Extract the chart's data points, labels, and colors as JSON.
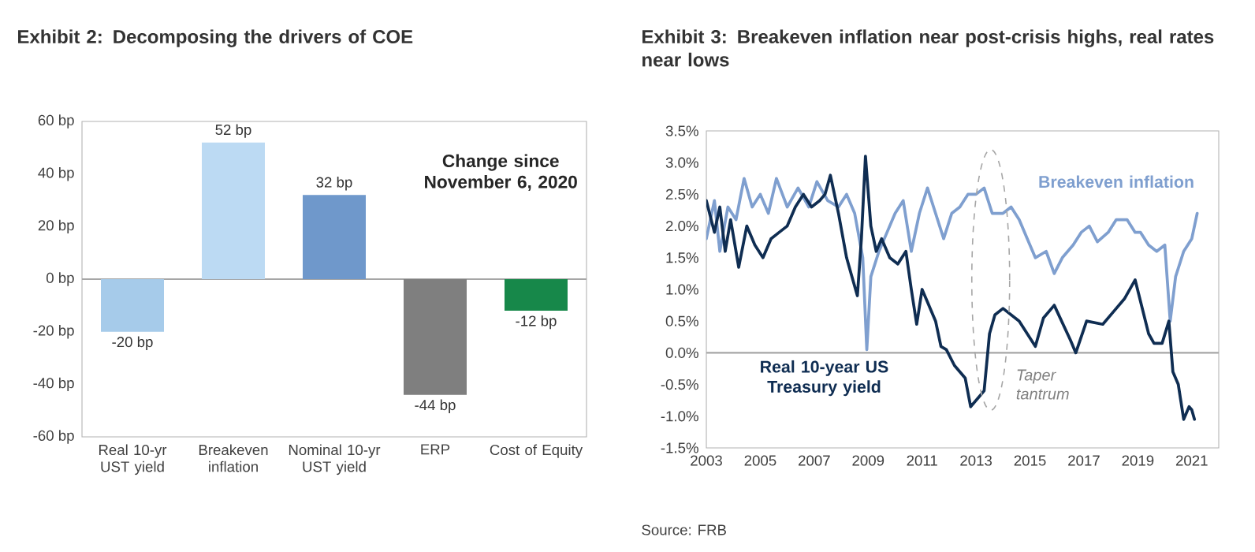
{
  "chart_data": [
    {
      "type": "bar",
      "title": "Exhibit 2: Decomposing the drivers of COE",
      "categories": [
        "Real 10-yr UST yield",
        "Breakeven inflation",
        "Nominal 10-yr UST yield",
        "ERP",
        "Cost of Equity"
      ],
      "values": [
        -20,
        52,
        32,
        -44,
        -12
      ],
      "colors": [
        "#a6cbea",
        "#bcdaf3",
        "#6f98cb",
        "#7f7f7f",
        "#17884a"
      ],
      "value_labels": [
        "-20 bp",
        "52 bp",
        "32 bp",
        "-44 bp",
        "-12 bp"
      ],
      "ylim": [
        -60,
        60
      ],
      "yticks": [
        {
          "value": -60,
          "label": "-60 bp"
        },
        {
          "value": -40,
          "label": "-40 bp"
        },
        {
          "value": -20,
          "label": "-20 bp"
        },
        {
          "value": 0,
          "label": "0 bp"
        },
        {
          "value": 20,
          "label": "20 bp"
        },
        {
          "value": 40,
          "label": "40 bp"
        },
        {
          "value": 60,
          "label": "60 bp"
        }
      ],
      "annotations": [
        "Change since November 6, 2020"
      ],
      "ref_lines": [
        {
          "axis": "y",
          "value": 0,
          "color": "#a6a6a6"
        }
      ]
    },
    {
      "type": "line",
      "title": "Exhibit 3: Breakeven inflation near post-crisis highs, real rates near lows",
      "series": [
        {
          "name": "Breakeven inflation",
          "color": "#7f9fcf",
          "x": [
            2003.0,
            2003.3,
            2003.5,
            2003.8,
            2004.1,
            2004.4,
            2004.7,
            2005.0,
            2005.3,
            2005.6,
            2006.0,
            2006.4,
            2006.8,
            2007.1,
            2007.5,
            2007.9,
            2008.2,
            2008.5,
            2008.8,
            2008.95,
            2009.1,
            2009.4,
            2009.7,
            2010.0,
            2010.3,
            2010.6,
            2010.9,
            2011.2,
            2011.5,
            2011.8,
            2012.1,
            2012.4,
            2012.7,
            2013.0,
            2013.3,
            2013.6,
            2014.0,
            2014.3,
            2014.6,
            2014.9,
            2015.2,
            2015.6,
            2015.9,
            2016.2,
            2016.6,
            2016.9,
            2017.2,
            2017.5,
            2017.9,
            2018.2,
            2018.6,
            2018.9,
            2019.1,
            2019.4,
            2019.7,
            2020.0,
            2020.2,
            2020.4,
            2020.7,
            2021.0,
            2021.2
          ],
          "values": [
            1.8,
            2.4,
            1.6,
            2.3,
            2.1,
            2.75,
            2.3,
            2.5,
            2.2,
            2.75,
            2.3,
            2.6,
            2.3,
            2.7,
            2.4,
            2.3,
            2.5,
            2.2,
            1.5,
            0.05,
            1.2,
            1.6,
            1.9,
            2.2,
            2.4,
            1.6,
            2.2,
            2.6,
            2.2,
            1.8,
            2.2,
            2.3,
            2.5,
            2.5,
            2.6,
            2.2,
            2.2,
            2.3,
            2.1,
            1.8,
            1.5,
            1.6,
            1.25,
            1.5,
            1.7,
            1.9,
            2.0,
            1.75,
            1.9,
            2.1,
            2.1,
            1.9,
            1.9,
            1.7,
            1.6,
            1.7,
            0.5,
            1.2,
            1.6,
            1.8,
            2.2
          ]
        },
        {
          "name": "Real 10-year US Treasury yield",
          "color": "#0f2d52",
          "x": [
            2003.0,
            2003.3,
            2003.5,
            2003.7,
            2003.9,
            2004.2,
            2004.5,
            2004.8,
            2005.1,
            2005.4,
            2005.7,
            2006.0,
            2006.3,
            2006.6,
            2006.9,
            2007.2,
            2007.4,
            2007.6,
            2007.9,
            2008.2,
            2008.4,
            2008.6,
            2008.75,
            2008.9,
            2009.1,
            2009.3,
            2009.5,
            2009.8,
            2010.1,
            2010.4,
            2010.6,
            2010.8,
            2011.0,
            2011.2,
            2011.5,
            2011.7,
            2011.9,
            2012.2,
            2012.6,
            2012.8,
            2013.1,
            2013.3,
            2013.5,
            2013.7,
            2014.0,
            2014.6,
            2015.2,
            2015.5,
            2015.9,
            2016.5,
            2016.7,
            2017.1,
            2017.7,
            2018.1,
            2018.5,
            2018.9,
            2019.4,
            2019.6,
            2019.9,
            2020.15,
            2020.3,
            2020.5,
            2020.7,
            2020.9,
            2021.0,
            2021.1
          ],
          "values": [
            2.4,
            1.9,
            2.3,
            1.6,
            2.1,
            1.35,
            2.0,
            1.7,
            1.5,
            1.8,
            1.9,
            2.0,
            2.3,
            2.5,
            2.3,
            2.4,
            2.5,
            2.8,
            2.2,
            1.5,
            1.2,
            0.9,
            1.8,
            3.1,
            2.0,
            1.6,
            1.8,
            1.5,
            1.4,
            1.6,
            1.0,
            0.45,
            1.0,
            0.8,
            0.5,
            0.1,
            0.05,
            -0.2,
            -0.4,
            -0.85,
            -0.7,
            -0.6,
            0.3,
            0.6,
            0.7,
            0.5,
            0.1,
            0.55,
            0.75,
            0.2,
            0.0,
            0.5,
            0.45,
            0.65,
            0.85,
            1.15,
            0.3,
            0.15,
            0.15,
            0.5,
            -0.3,
            -0.5,
            -1.05,
            -0.85,
            -0.9,
            -1.05
          ]
        }
      ],
      "xlim": [
        2003,
        2022
      ],
      "xticks": [
        2003,
        2005,
        2007,
        2009,
        2011,
        2013,
        2015,
        2017,
        2019,
        2021
      ],
      "ylim": [
        -1.5,
        3.5
      ],
      "yticks": [
        {
          "value": -1.5,
          "label": "-1.5%"
        },
        {
          "value": -1.0,
          "label": "-1.0%"
        },
        {
          "value": -0.5,
          "label": "-0.5%"
        },
        {
          "value": 0.0,
          "label": "0.0%"
        },
        {
          "value": 0.5,
          "label": "0.5%"
        },
        {
          "value": 1.0,
          "label": "1.0%"
        },
        {
          "value": 1.5,
          "label": "1.5%"
        },
        {
          "value": 2.0,
          "label": "2.0%"
        },
        {
          "value": 2.5,
          "label": "2.5%"
        },
        {
          "value": 3.0,
          "label": "3.0%"
        },
        {
          "value": 3.5,
          "label": "3.5%"
        }
      ],
      "annotations": [
        "Taper tantrum",
        "Source: FRB"
      ],
      "ref_lines": [
        {
          "axis": "y",
          "value": 0,
          "color": "#a6a6a6"
        }
      ]
    }
  ]
}
